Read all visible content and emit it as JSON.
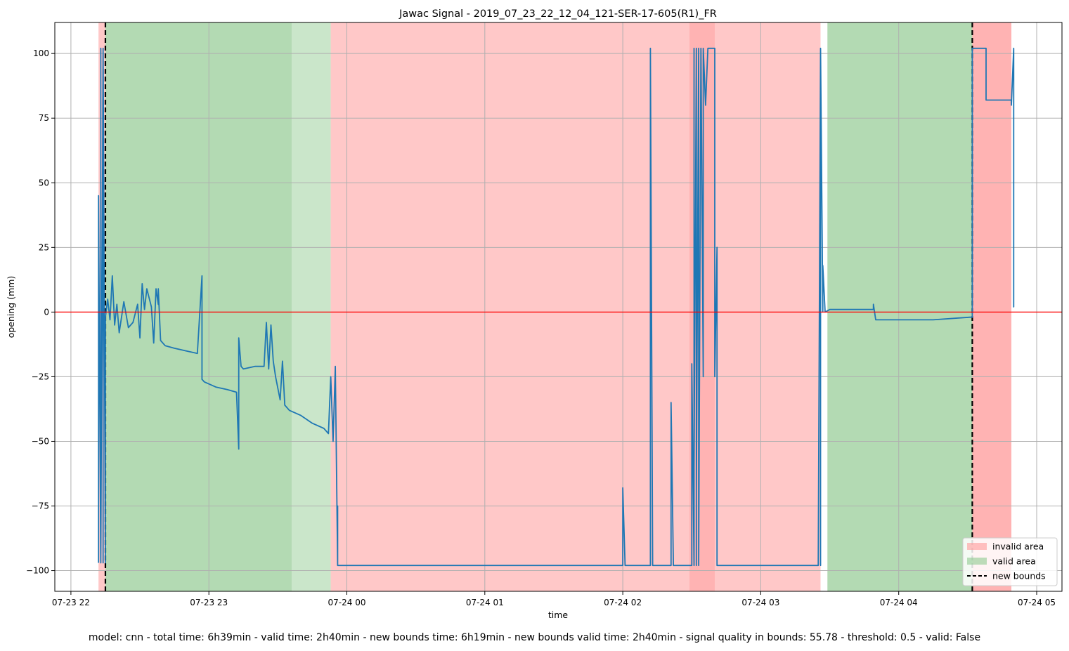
{
  "chart_data": {
    "type": "line",
    "title": "Jawac Signal - 2019_07_23_22_12_04_121-SER-17-605(R1)_FR",
    "xlabel": "time",
    "ylabel": "opening (mm)",
    "xlim": [
      "2019-07-23 21:53",
      "2019-07-24 05:11"
    ],
    "ylim": [
      -108,
      112
    ],
    "x_ticks": [
      "07-23 22",
      "07-23 23",
      "07-24 00",
      "07-24 01",
      "07-24 02",
      "07-24 03",
      "07-24 04",
      "07-24 05"
    ],
    "y_ticks": [
      -100,
      -75,
      -50,
      -25,
      0,
      25,
      50,
      75,
      100
    ],
    "grid": true,
    "reference_line": {
      "y": 0,
      "color": "#ff0000"
    },
    "legend": {
      "position": "bottom-right",
      "entries": [
        {
          "label": "invalid area",
          "kind": "patch",
          "color": "#ff9999"
        },
        {
          "label": "valid area",
          "kind": "patch",
          "color": "#8fc98f"
        },
        {
          "label": "new bounds",
          "kind": "dashed",
          "color": "#000000"
        }
      ]
    },
    "areas": [
      {
        "kind": "invalid",
        "start": "2019-07-23 22:12",
        "end": "2019-07-23 22:15"
      },
      {
        "kind": "valid",
        "start": "2019-07-23 22:15",
        "end": "2019-07-23 23:36"
      },
      {
        "kind": "valid-light",
        "start": "2019-07-23 23:36",
        "end": "2019-07-23 23:53"
      },
      {
        "kind": "invalid",
        "start": "2019-07-23 23:53",
        "end": "2019-07-24 02:29"
      },
      {
        "kind": "invalid-dark",
        "start": "2019-07-24 02:29",
        "end": "2019-07-24 02:40"
      },
      {
        "kind": "invalid",
        "start": "2019-07-24 02:40",
        "end": "2019-07-24 03:26"
      },
      {
        "kind": "valid",
        "start": "2019-07-24 03:29",
        "end": "2019-07-24 04:32"
      },
      {
        "kind": "invalid-dark",
        "start": "2019-07-24 04:32",
        "end": "2019-07-24 04:49"
      }
    ],
    "new_bounds": [
      "2019-07-23 22:15",
      "2019-07-24 04:32"
    ],
    "series": [
      {
        "color": "#1f77b4",
        "x": [
          "2019-07-23 22:12",
          "2019-07-23 22:12",
          "2019-07-23 22:13",
          "2019-07-23 22:13",
          "2019-07-23 22:13",
          "2019-07-23 22:14",
          "2019-07-23 22:14",
          "2019-07-23 22:14",
          "2019-07-23 22:15",
          "2019-07-23 22:15",
          "2019-07-23 22:16",
          "2019-07-23 22:17",
          "2019-07-23 22:18",
          "2019-07-23 22:19",
          "2019-07-23 22:20",
          "2019-07-23 22:21",
          "2019-07-23 22:23",
          "2019-07-23 22:25",
          "2019-07-23 22:27",
          "2019-07-23 22:29",
          "2019-07-23 22:30",
          "2019-07-23 22:31",
          "2019-07-23 22:32",
          "2019-07-23 22:33",
          "2019-07-23 22:35",
          "2019-07-23 22:36",
          "2019-07-23 22:37",
          "2019-07-23 22:38",
          "2019-07-23 22:38",
          "2019-07-23 22:39",
          "2019-07-23 22:41",
          "2019-07-23 22:45",
          "2019-07-23 22:50",
          "2019-07-23 22:55",
          "2019-07-23 22:57",
          "2019-07-23 22:57",
          "2019-07-23 22:57",
          "2019-07-23 22:58",
          "2019-07-23 23:03",
          "2019-07-23 23:08",
          "2019-07-23 23:12",
          "2019-07-23 23:13",
          "2019-07-23 23:13",
          "2019-07-23 23:14",
          "2019-07-23 23:15",
          "2019-07-23 23:20",
          "2019-07-23 23:24",
          "2019-07-23 23:25",
          "2019-07-23 23:26",
          "2019-07-23 23:27",
          "2019-07-23 23:28",
          "2019-07-23 23:29",
          "2019-07-23 23:31",
          "2019-07-23 23:32",
          "2019-07-23 23:33",
          "2019-07-23 23:35",
          "2019-07-23 23:40",
          "2019-07-23 23:45",
          "2019-07-23 23:50",
          "2019-07-23 23:52",
          "2019-07-23 23:53",
          "2019-07-23 23:54",
          "2019-07-23 23:55",
          "2019-07-23 23:56",
          "2019-07-23 23:56",
          "2019-07-23 23:56",
          "2019-07-24 02:00",
          "2019-07-24 02:00",
          "2019-07-24 02:01",
          "2019-07-24 02:12",
          "2019-07-24 02:12",
          "2019-07-24 02:13",
          "2019-07-24 02:21",
          "2019-07-24 02:21",
          "2019-07-24 02:22",
          "2019-07-24 02:30",
          "2019-07-24 02:30",
          "2019-07-24 02:31",
          "2019-07-24 02:31",
          "2019-07-24 02:31",
          "2019-07-24 02:32",
          "2019-07-24 02:32",
          "2019-07-24 02:32",
          "2019-07-24 02:32",
          "2019-07-24 02:33",
          "2019-07-24 02:33",
          "2019-07-24 02:34",
          "2019-07-24 02:35",
          "2019-07-24 02:35",
          "2019-07-24 02:36",
          "2019-07-24 02:37",
          "2019-07-24 02:38",
          "2019-07-24 02:40",
          "2019-07-24 02:40",
          "2019-07-24 02:41",
          "2019-07-24 02:41",
          "2019-07-24 02:41",
          "2019-07-24 03:25",
          "2019-07-24 03:25",
          "2019-07-24 03:26",
          "2019-07-24 03:26",
          "2019-07-24 03:26",
          "2019-07-24 03:27",
          "2019-07-24 03:27",
          "2019-07-24 03:28",
          "2019-07-24 03:30",
          "2019-07-24 03:40",
          "2019-07-24 03:49",
          "2019-07-24 03:49",
          "2019-07-24 03:50",
          "2019-07-24 04:00",
          "2019-07-24 04:12",
          "2019-07-24 04:15",
          "2019-07-24 04:31",
          "2019-07-24 04:31",
          "2019-07-24 04:32",
          "2019-07-24 04:32",
          "2019-07-24 04:38",
          "2019-07-24 04:38",
          "2019-07-24 04:38",
          "2019-07-24 04:40",
          "2019-07-24 04:49",
          "2019-07-24 04:49",
          "2019-07-24 04:50",
          "2019-07-24 04:50",
          "2019-07-24 04:50"
        ],
        "y": [
          -97,
          45,
          -97,
          102,
          -97,
          102,
          -97,
          102,
          -97,
          -2,
          5,
          -3,
          14,
          -5,
          3,
          -8,
          4,
          -6,
          -4,
          3,
          -10,
          11,
          1,
          9,
          2,
          -12,
          9,
          3,
          9,
          -11,
          -13,
          -14,
          -15,
          -16,
          14,
          -25,
          -26,
          -27,
          -29,
          -30,
          -31,
          -53,
          -10,
          -21,
          -22,
          -21,
          -21,
          -4,
          -22,
          -5,
          -19,
          -25,
          -34,
          -19,
          -36,
          -38,
          -40,
          -43,
          -45,
          -47,
          -25,
          -50,
          -21,
          -98,
          -75,
          -98,
          -98,
          -68,
          -98,
          -98,
          102,
          -98,
          -98,
          -35,
          -98,
          -98,
          -20,
          -98,
          102,
          -60,
          102,
          -98,
          102,
          -70,
          102,
          -98,
          102,
          -25,
          102,
          80,
          102,
          102,
          102,
          -25,
          25,
          -98,
          -98,
          -98,
          -98,
          102,
          -98,
          102,
          0,
          18,
          0,
          1,
          1,
          1,
          3,
          -3,
          -3,
          -3,
          -3,
          -2,
          -2,
          -2,
          102,
          102,
          102,
          82,
          82,
          82,
          80,
          102,
          2,
          102
        ]
      }
    ]
  },
  "footer": {
    "text": "model: cnn - total time: 6h39min - valid time: 2h40min - new bounds time: 6h19min - new bounds valid time: 2h40min - signal quality in bounds: 55.78 - threshold: 0.5 - valid: False"
  }
}
